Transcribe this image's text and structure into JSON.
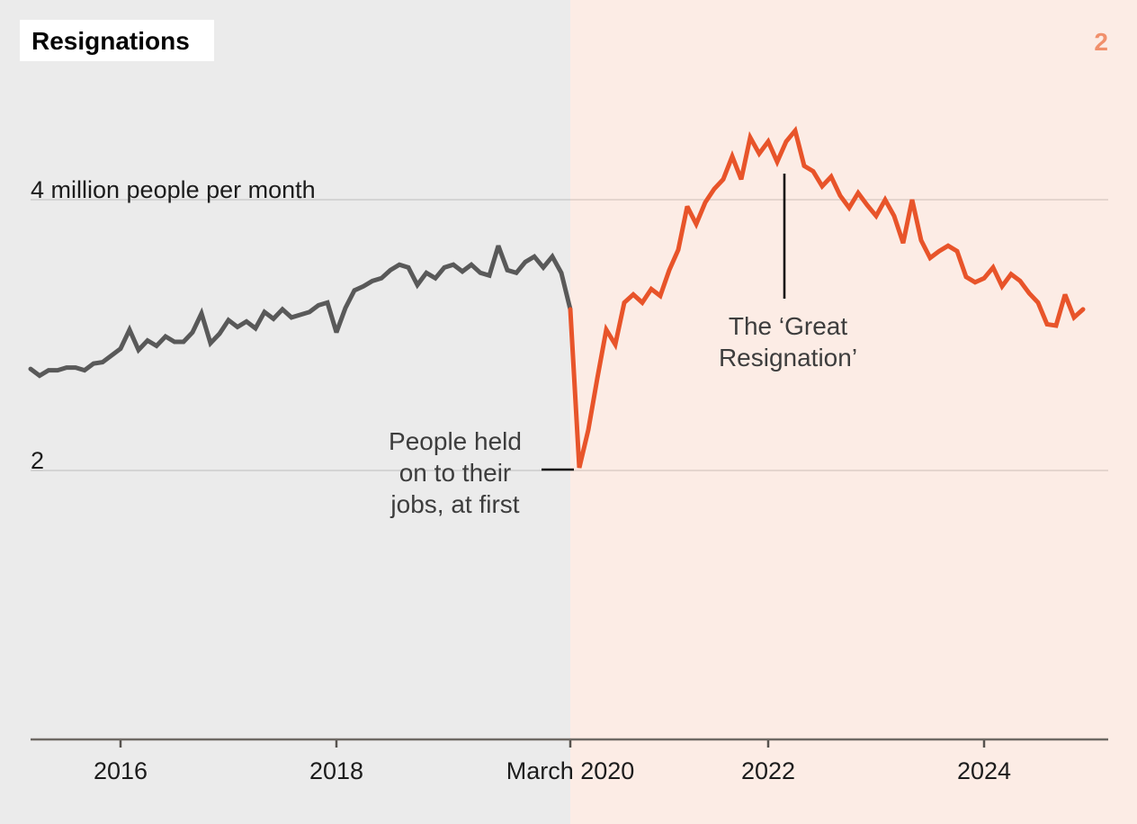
{
  "header": {
    "title": "Resignations",
    "slide_number": "2"
  },
  "colors": {
    "background_before": "#ebebeb",
    "background_after": "#fcece5",
    "line_before": "#595959",
    "line_after": "#e8542a",
    "slide_number": "#f1906c",
    "gridline": "#000000",
    "axis": "#6e6964",
    "annotation_line": "#111111"
  },
  "chart_data": {
    "type": "line",
    "title": "Resignations",
    "unit": "millions of people per month",
    "x_axis": {
      "ticks": [
        {
          "label": "2016",
          "year": 2016.0
        },
        {
          "label": "2018",
          "year": 2018.0
        },
        {
          "label": "March 2020",
          "year": 2020.1667
        },
        {
          "label": "2022",
          "year": 2022.0
        },
        {
          "label": "2024",
          "year": 2024.0
        }
      ]
    },
    "y_axis": {
      "gridlines": [
        {
          "value": 4,
          "label": "4 million people per month"
        },
        {
          "value": 2,
          "label": "2"
        }
      ]
    },
    "series": [
      {
        "name": "Resignations before March 2020",
        "color": "#595959"
      },
      {
        "name": "Resignations from March 2020 onward",
        "color": "#e8542a"
      }
    ],
    "start_month": "2015-03",
    "split_month": "2020-03",
    "end_month": "2024-12",
    "values_millions": [
      2.75,
      2.7,
      2.74,
      2.74,
      2.76,
      2.76,
      2.74,
      2.79,
      2.8,
      2.85,
      2.9,
      3.04,
      2.89,
      2.96,
      2.92,
      2.99,
      2.95,
      2.95,
      3.02,
      3.16,
      2.94,
      3.01,
      3.11,
      3.06,
      3.1,
      3.05,
      3.17,
      3.12,
      3.19,
      3.13,
      3.15,
      3.17,
      3.22,
      3.24,
      3.02,
      3.2,
      3.33,
      3.36,
      3.4,
      3.42,
      3.48,
      3.52,
      3.5,
      3.37,
      3.46,
      3.42,
      3.5,
      3.52,
      3.47,
      3.52,
      3.46,
      3.44,
      3.66,
      3.48,
      3.46,
      3.54,
      3.58,
      3.5,
      3.58,
      3.46,
      3.19,
      2.02,
      2.3,
      2.68,
      3.04,
      2.93,
      3.24,
      3.3,
      3.24,
      3.34,
      3.29,
      3.48,
      3.63,
      3.95,
      3.82,
      3.98,
      4.08,
      4.15,
      4.32,
      4.15,
      4.46,
      4.34,
      4.43,
      4.28,
      4.43,
      4.51,
      4.25,
      4.21,
      4.1,
      4.17,
      4.03,
      3.94,
      4.05,
      3.96,
      3.88,
      4.0,
      3.88,
      3.68,
      4.0,
      3.7,
      3.57,
      3.62,
      3.66,
      3.62,
      3.43,
      3.39,
      3.42,
      3.5,
      3.36,
      3.45,
      3.4,
      3.31,
      3.24,
      3.08,
      3.07,
      3.3,
      3.13,
      3.19
    ],
    "annotations": [
      {
        "id": "great-resignation",
        "lines": [
          "The ‘Great",
          "Resignation’"
        ]
      },
      {
        "id": "held-jobs",
        "lines": [
          "People held",
          "on to their",
          "jobs, at first"
        ]
      }
    ]
  }
}
